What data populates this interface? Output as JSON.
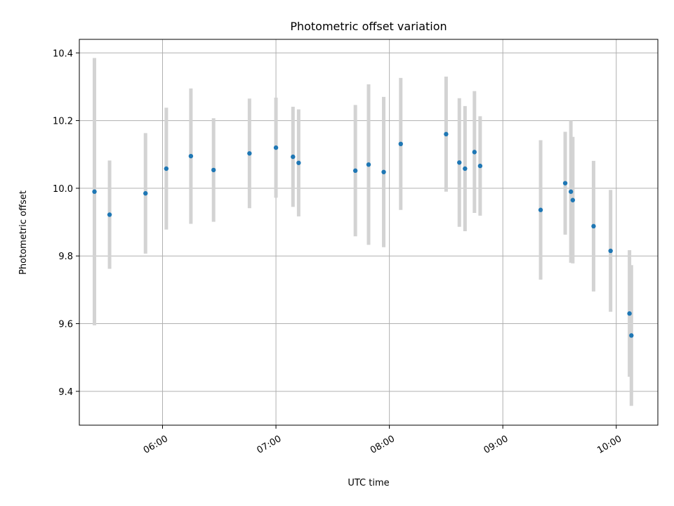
{
  "chart_data": {
    "type": "scatter",
    "title": "Photometric offset variation",
    "xlabel": "UTC time",
    "ylabel": "Photometric offset",
    "xlim": [
      "05:16",
      "10:22"
    ],
    "ylim": [
      9.3,
      10.44
    ],
    "grid": true,
    "x_ticks": [
      "06:00",
      "07:00",
      "08:00",
      "09:00",
      "10:00"
    ],
    "y_ticks": [
      9.4,
      9.6,
      9.8,
      10.0,
      10.2,
      10.4
    ],
    "marker_color": "#1f77b4",
    "errorbar_color": "#d3d3d3",
    "points": [
      {
        "x": "05:24",
        "y": 9.99,
        "err": 0.395
      },
      {
        "x": "05:32",
        "y": 9.922,
        "err": 0.16
      },
      {
        "x": "05:51",
        "y": 9.985,
        "err": 0.178
      },
      {
        "x": "06:02",
        "y": 10.058,
        "err": 0.18
      },
      {
        "x": "06:15",
        "y": 10.095,
        "err": 0.2
      },
      {
        "x": "06:27",
        "y": 10.054,
        "err": 0.153
      },
      {
        "x": "06:46",
        "y": 10.103,
        "err": 0.162
      },
      {
        "x": "07:00",
        "y": 10.12,
        "err": 0.148
      },
      {
        "x": "07:09",
        "y": 10.093,
        "err": 0.148
      },
      {
        "x": "07:12",
        "y": 10.075,
        "err": 0.158
      },
      {
        "x": "07:42",
        "y": 10.052,
        "err": 0.194
      },
      {
        "x": "07:49",
        "y": 10.07,
        "err": 0.237
      },
      {
        "x": "07:57",
        "y": 10.048,
        "err": 0.222
      },
      {
        "x": "08:06",
        "y": 10.131,
        "err": 0.195
      },
      {
        "x": "08:30",
        "y": 10.16,
        "err": 0.17
      },
      {
        "x": "08:37",
        "y": 10.076,
        "err": 0.19
      },
      {
        "x": "08:40",
        "y": 10.058,
        "err": 0.185
      },
      {
        "x": "08:45",
        "y": 10.107,
        "err": 0.18
      },
      {
        "x": "08:48",
        "y": 10.066,
        "err": 0.147
      },
      {
        "x": "09:20",
        "y": 9.936,
        "err": 0.206
      },
      {
        "x": "09:33",
        "y": 10.015,
        "err": 0.152
      },
      {
        "x": "09:36",
        "y": 9.99,
        "err": 0.21
      },
      {
        "x": "09:37",
        "y": 9.965,
        "err": 0.187
      },
      {
        "x": "09:48",
        "y": 9.888,
        "err": 0.193
      },
      {
        "x": "09:57",
        "y": 9.815,
        "err": 0.18
      },
      {
        "x": "10:07",
        "y": 9.63,
        "err": 0.187
      },
      {
        "x": "10:08",
        "y": 9.565,
        "err": 0.208
      }
    ]
  }
}
